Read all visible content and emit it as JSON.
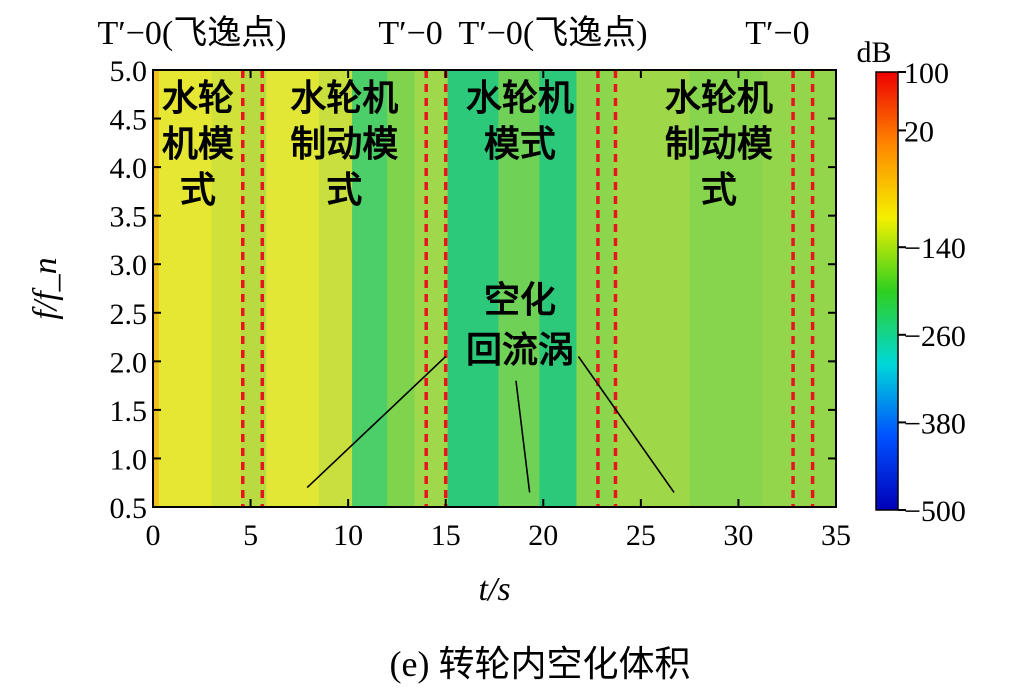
{
  "chart_data": {
    "type": "heatmap",
    "xlabel": "t/s",
    "ylabel": "f/f_n",
    "xlim": [
      0,
      35
    ],
    "ylim": [
      0.5,
      5.0
    ],
    "x_ticks": [
      "0",
      "5",
      "10",
      "15",
      "20",
      "25",
      "30",
      "35"
    ],
    "y_ticks": [
      "0.5",
      "1.0",
      "1.5",
      "2.0",
      "2.5",
      "3.0",
      "3.5",
      "4.0",
      "4.5",
      "5.0"
    ],
    "colorbar": {
      "unit": "dB",
      "range": [
        -500,
        100
      ],
      "ticks": [
        "100",
        "20",
        "−140",
        "−260",
        "−380",
        "−500"
      ],
      "colors": [
        "#ee0000",
        "#ff8800",
        "#f4f000",
        "#2fcf1f",
        "#00d8d8",
        "#0050ff",
        "#0000b8"
      ]
    },
    "phase_boundaries_t": [
      4.6,
      5.6,
      14.0,
      15.0,
      22.8,
      23.7,
      32.8,
      33.8
    ],
    "top_labels": [
      {
        "text": "T′−0(飞逸点)",
        "t": 2.0
      },
      {
        "text": "T′−0",
        "t": 13.2
      },
      {
        "text": "T′−0(飞逸点)",
        "t": 20.5
      },
      {
        "text": "T′−0",
        "t": 32.0
      }
    ],
    "modes": [
      {
        "lines": [
          "水轮",
          "机模",
          "式"
        ],
        "t": 2.3
      },
      {
        "lines": [
          "水轮机",
          "制动模",
          "式"
        ],
        "t": 9.8
      },
      {
        "lines": [
          "水轮机",
          "模式"
        ],
        "t": 18.8
      },
      {
        "lines": [
          "水轮机",
          "制动模",
          "式"
        ],
        "t": 29.0
      }
    ],
    "annotation": {
      "lines": [
        "空化",
        "回流涡"
      ],
      "pointers": [
        {
          "from": [
            15.0,
            2.05
          ],
          "to": [
            7.9,
            0.7
          ]
        },
        {
          "from": [
            18.6,
            1.8
          ],
          "to": [
            19.3,
            0.65
          ]
        },
        {
          "from": [
            21.8,
            2.05
          ],
          "to": [
            26.7,
            0.65
          ]
        }
      ]
    },
    "bands": [
      {
        "t0": 0.0,
        "t1": 0.3,
        "color": "#f0c020"
      },
      {
        "t0": 0.3,
        "t1": 3.0,
        "color": "#e6e733"
      },
      {
        "t0": 3.0,
        "t1": 4.5,
        "color": "#d0e23a"
      },
      {
        "t0": 4.5,
        "t1": 5.8,
        "color": "#b7db40"
      },
      {
        "t0": 5.8,
        "t1": 8.5,
        "color": "#e2e635"
      },
      {
        "t0": 8.5,
        "t1": 10.2,
        "color": "#c9df3d"
      },
      {
        "t0": 10.2,
        "t1": 12.0,
        "color": "#4ccf68"
      },
      {
        "t0": 12.0,
        "t1": 13.4,
        "color": "#7fd44e"
      },
      {
        "t0": 13.4,
        "t1": 15.1,
        "color": "#9fd84a"
      },
      {
        "t0": 15.1,
        "t1": 17.7,
        "color": "#2cc97a"
      },
      {
        "t0": 17.7,
        "t1": 19.8,
        "color": "#6fd257"
      },
      {
        "t0": 19.8,
        "t1": 21.7,
        "color": "#2dc97b"
      },
      {
        "t0": 21.7,
        "t1": 23.6,
        "color": "#8bd64d"
      },
      {
        "t0": 23.6,
        "t1": 27.5,
        "color": "#9ed848"
      },
      {
        "t0": 27.5,
        "t1": 31.2,
        "color": "#86d54c"
      },
      {
        "t0": 31.2,
        "t1": 35.0,
        "color": "#93d64b"
      }
    ]
  },
  "caption": "(e) 转轮内空化体积"
}
